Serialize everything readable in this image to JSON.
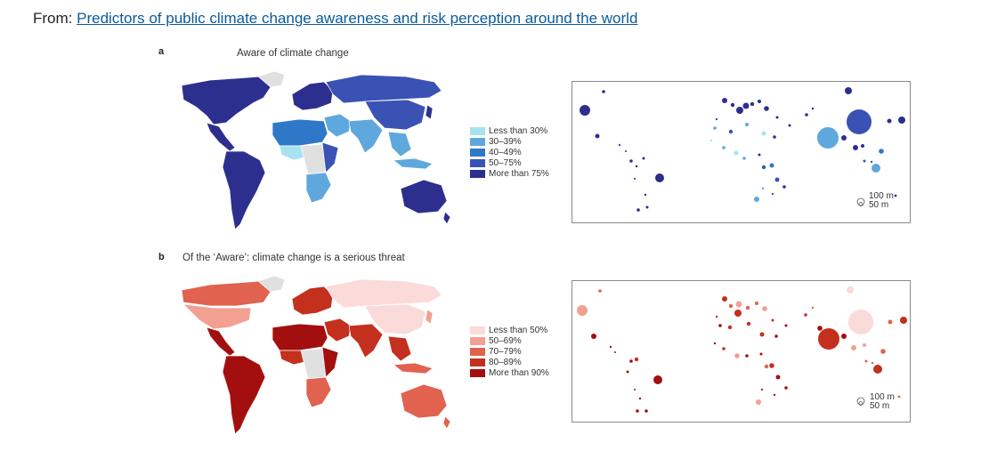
{
  "header": {
    "prefix": "From: ",
    "link_text": "Predictors of public climate change awareness and risk perception around the world"
  },
  "panels": [
    {
      "id": "a",
      "letter": "a",
      "title": "Aware of climate change",
      "colors": {
        "land": "#2d2f8f",
        "nodata": "#e0e0e0",
        "border": "#ffffff",
        "c1": "#a6e3ee",
        "c2": "#5fa8dd",
        "c3": "#2f78c8",
        "c4": "#3a52b4",
        "c5": "#2d2f8f"
      },
      "legend": [
        {
          "label": "Less than 30%",
          "color": "#a6e3ee"
        },
        {
          "label": "30–39%",
          "color": "#5fa8dd"
        },
        {
          "label": "40–49%",
          "color": "#2f78c8"
        },
        {
          "label": "50–75%",
          "color": "#3a52b4"
        },
        {
          "label": "More than 75%",
          "color": "#2d2f8f"
        }
      ],
      "scale_label_top": "100 m",
      "scale_label_bottom": "50 m"
    },
    {
      "id": "b",
      "letter": "b",
      "title": "Of the ‘Aware’: climate change is a serious threat",
      "colors": {
        "land": "#a31717",
        "nodata": "#e0e0e0",
        "border": "#ffffff",
        "c1": "#fbdada",
        "c2": "#f2a092",
        "c3": "#e0624f",
        "c4": "#c4301e",
        "c5": "#a30f0f"
      },
      "legend": [
        {
          "label": "Less than 50%",
          "color": "#fbdada"
        },
        {
          "label": "50–69%",
          "color": "#f2a092"
        },
        {
          "label": "70–79%",
          "color": "#e0624f"
        },
        {
          "label": "80–89%",
          "color": "#c4301e"
        },
        {
          "label": "More than 90%",
          "color": "#a30f0f"
        }
      ],
      "scale_label_top": "100 m",
      "scale_label_bottom": "50 m"
    }
  ]
}
